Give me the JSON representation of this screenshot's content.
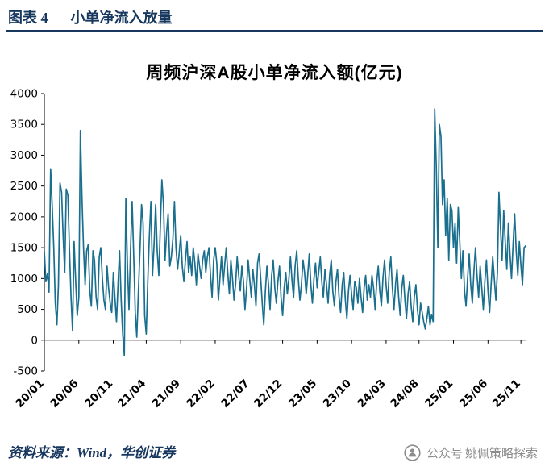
{
  "header": {
    "label": "图表 4",
    "title": "小单净流入放量"
  },
  "chart_data": {
    "type": "line",
    "title": "周频沪深A股小单净流入额(亿元)",
    "series_name": "小单净流入额",
    "color": "#1A6F8E",
    "xlabel": "",
    "ylabel": "",
    "ylim": [
      -500,
      4000
    ],
    "yticks": [
      -500,
      0,
      500,
      1000,
      1500,
      2000,
      2500,
      3000,
      3500,
      4000
    ],
    "grid": false,
    "legend": "none",
    "x_tick_labels": [
      "20/01",
      "20/06",
      "20/11",
      "21/04",
      "21/09",
      "22/02",
      "22/07",
      "22/12",
      "23/05",
      "23/10",
      "24/03",
      "24/08",
      "25/01",
      "25/06",
      "25/11"
    ],
    "x_tick_indices": [
      0,
      22,
      44,
      65,
      87,
      109,
      131,
      152,
      174,
      196,
      218,
      239,
      261,
      283,
      304
    ],
    "values": [
      1450,
      950,
      1080,
      780,
      2780,
      2200,
      1500,
      600,
      250,
      900,
      2550,
      2400,
      1700,
      1100,
      2450,
      2350,
      1500,
      700,
      150,
      1600,
      950,
      400,
      700,
      3400,
      2300,
      1500,
      900,
      1450,
      1550,
      800,
      550,
      1450,
      1300,
      700,
      500,
      1350,
      1500,
      1000,
      650,
      500,
      1200,
      850,
      600,
      450,
      1100,
      700,
      300,
      900,
      1450,
      650,
      100,
      -250,
      2300,
      1200,
      500,
      1500,
      2250,
      1400,
      450,
      50,
      800,
      1450,
      2200,
      1900,
      400,
      100,
      950,
      1700,
      2250,
      1050,
      1550,
      2200,
      1450,
      1050,
      1850,
      2600,
      2200,
      1300,
      1750,
      2050,
      1200,
      1350,
      1650,
      2250,
      1500,
      1150,
      1400,
      1700,
      1200,
      950,
      1300,
      1600,
      1100,
      1350,
      1050,
      1500,
      1250,
      900,
      1400,
      1200,
      1000,
      1300,
      1450,
      1100,
      1350,
      1500,
      1050,
      700,
      1300,
      1500,
      1250,
      650,
      1000,
      1350,
      900,
      1200,
      1500,
      1100,
      750,
      1300,
      1000,
      650,
      900,
      1350,
      1050,
      800,
      1200,
      950,
      500,
      850,
      1300,
      1000,
      700,
      1150,
      900,
      550,
      1250,
      1400,
      1000,
      600,
      250,
      800,
      1200,
      900,
      500,
      1050,
      1300,
      850,
      600,
      950,
      1200,
      700,
      400,
      850,
      1100,
      750,
      1000,
      1350,
      950,
      700,
      1200,
      1450,
      1000,
      650,
      900,
      1300,
      1100,
      750,
      1050,
      1400,
      900,
      600,
      1000,
      1250,
      850,
      1100,
      1350,
      950,
      700,
      1150,
      900,
      600,
      1050,
      1300,
      800,
      550,
      950,
      1150,
      700,
      450,
      900,
      1100,
      650,
      350,
      800,
      1050,
      750,
      500,
      950,
      850,
      600,
      1000,
      700,
      450,
      850,
      1050,
      650,
      900,
      700,
      1050,
      850,
      500,
      950,
      1200,
      800,
      550,
      1000,
      1300,
      900,
      600,
      1100,
      1350,
      850,
      500,
      900,
      1150,
      700,
      400,
      850,
      1050,
      650,
      350,
      750,
      950,
      550,
      300,
      700,
      900,
      500,
      250,
      600,
      450,
      300,
      180,
      350,
      550,
      250,
      420,
      300,
      3750,
      2800,
      1500,
      3500,
      3300,
      2200,
      2600,
      1700,
      2300,
      1300,
      2200,
      2100,
      1500,
      1900,
      1250,
      2150,
      1600,
      1000,
      1450,
      800,
      550,
      1000,
      1400,
      900,
      600,
      1100,
      1500,
      1050,
      700,
      1200,
      850,
      500,
      950,
      1300,
      800,
      450,
      900,
      1350,
      1000,
      650,
      1100,
      2400,
      1800,
      1300,
      2100,
      1600,
      1150,
      1900,
      1400,
      1000,
      1550,
      2050,
      1450,
      1050,
      1600,
      1200,
      900,
      1500,
      1530
    ]
  },
  "footer": {
    "source": "资料来源：Wind，华创证券",
    "wechat_label": "公众号|姚佩策略探索"
  }
}
